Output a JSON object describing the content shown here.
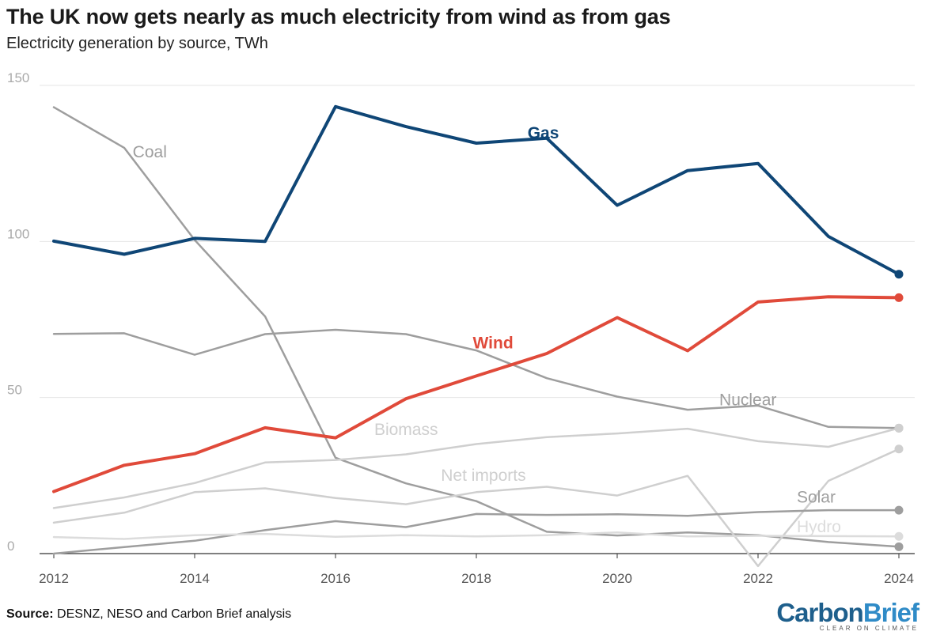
{
  "header": {
    "title": "The UK now gets nearly as much electricity from wind as from gas",
    "subtitle": "Electricity generation by source, TWh"
  },
  "footer": {
    "source_label": "Source:",
    "source_text": " DESNZ, NESO and Carbon Brief analysis",
    "logo_part1": "Carbon",
    "logo_part2": "Brief",
    "logo_tagline": "CLEAR ON CLIMATE"
  },
  "chart_data": {
    "type": "line",
    "x": [
      2012,
      2013,
      2014,
      2015,
      2016,
      2017,
      2018,
      2019,
      2020,
      2021,
      2022,
      2023,
      2024
    ],
    "xticks": [
      "2012",
      "2014",
      "2016",
      "2018",
      "2020",
      "2022",
      "2024"
    ],
    "yticks": [
      "0",
      "50",
      "100",
      "150"
    ],
    "ylim": [
      0,
      150
    ],
    "grid": true,
    "series": [
      {
        "name": "Coal",
        "color": "#9e9e9e",
        "width": 2.5,
        "fontSize": 21,
        "fontWeight": "400",
        "values": [
          143,
          130,
          100.5,
          76,
          30.7,
          22.5,
          16.8,
          7,
          5.8,
          6.8,
          5.9,
          3.7,
          2.2
        ]
      },
      {
        "name": "Nuclear",
        "color": "#9e9e9e",
        "width": 2.5,
        "fontSize": 21,
        "fontWeight": "400",
        "values": [
          70.4,
          70.6,
          63.7,
          70.3,
          71.7,
          70.3,
          65.1,
          56.2,
          50.3,
          46.1,
          47.4,
          40.6,
          40.2
        ]
      },
      {
        "name": "Biomass",
        "color": "#cfcfcf",
        "width": 2.5,
        "fontSize": 21,
        "fontWeight": "400",
        "values": [
          14.6,
          18,
          22.6,
          29.2,
          30,
          31.8,
          35.1,
          37.3,
          38.5,
          40,
          36,
          34.2,
          40.2
        ]
      },
      {
        "name": "Net imports",
        "color": "#cfcfcf",
        "width": 2.5,
        "fontSize": 21,
        "fontWeight": "400",
        "values": [
          9.9,
          13.1,
          19.7,
          20.9,
          17.8,
          15.8,
          19.7,
          21.4,
          18.6,
          24.9,
          -4,
          23.3,
          33.5
        ]
      },
      {
        "name": "Solar",
        "color": "#9e9e9e",
        "width": 2.5,
        "fontSize": 21,
        "fontWeight": "400",
        "values": [
          0,
          2.1,
          4.1,
          7.5,
          10.4,
          8.5,
          12.7,
          12.4,
          12.6,
          12.1,
          13.3,
          13.9,
          13.9
        ]
      },
      {
        "name": "Hydro",
        "color": "#dcdcdc",
        "width": 2.5,
        "fontSize": 21,
        "fontWeight": "400",
        "values": [
          5.3,
          4.7,
          5.9,
          6.3,
          5.4,
          5.9,
          5.5,
          5.9,
          6.8,
          5.5,
          5.7,
          5.6,
          5.5
        ]
      },
      {
        "name": "Wind",
        "color": "#e04a3a",
        "width": 4,
        "fontSize": 27,
        "fontWeight": "700",
        "values": [
          19.9,
          28.3,
          32,
          40.3,
          37.1,
          49.6,
          56.9,
          64.1,
          75.6,
          65,
          80.6,
          82.3,
          82
        ]
      },
      {
        "name": "Gas",
        "color": "#0f4676",
        "width": 4,
        "fontSize": 27,
        "fontWeight": "700",
        "values": [
          100.1,
          95.9,
          101,
          100,
          143.2,
          136.8,
          131.5,
          133.1,
          111.6,
          122.7,
          125,
          101.6,
          89.5
        ]
      }
    ]
  }
}
